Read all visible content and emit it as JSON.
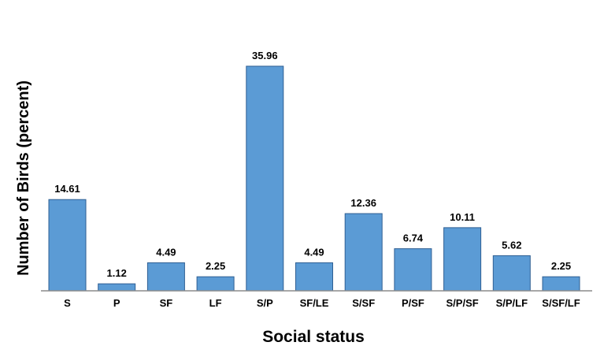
{
  "chart_data": {
    "type": "bar",
    "title": "",
    "xlabel": "Social status",
    "ylabel": "Number of Birds (percent)",
    "categories": [
      "S",
      "P",
      "SF",
      "LF",
      "S/P",
      "SF/LE",
      "S/SF",
      "P/SF",
      "S/P/SF",
      "S/P/LF",
      "S/SF/LF"
    ],
    "values": [
      14.61,
      1.12,
      4.49,
      2.25,
      35.96,
      4.49,
      12.36,
      6.74,
      10.11,
      5.62,
      2.25
    ],
    "data_labels": [
      "14.61",
      "1.12",
      "4.49",
      "2.25",
      "35.96",
      "4.49",
      "12.36",
      "6.74",
      "10.11",
      "5.62",
      "2.25"
    ],
    "ylim": [
      0,
      36
    ],
    "grid": false,
    "legend": "none",
    "colors": {
      "bar": "#5b9bd5",
      "bar_edge": "#2f5f93",
      "axis": "#8c8c8c"
    }
  }
}
